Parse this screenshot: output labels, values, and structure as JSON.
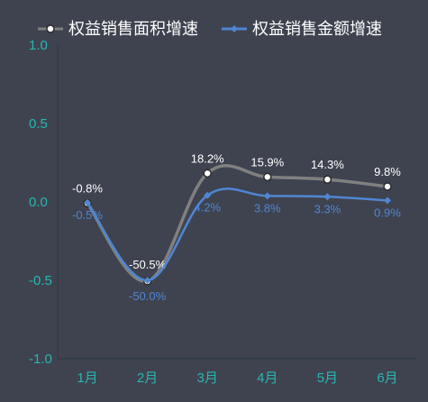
{
  "chart_data": {
    "type": "line",
    "categories": [
      "1月",
      "2月",
      "3月",
      "4月",
      "5月",
      "6月"
    ],
    "ylim": [
      -1.0,
      1.0
    ],
    "yticks": [
      "1.0",
      "0.5",
      "0.0",
      "-0.5",
      "-1.0"
    ],
    "legend_position": "top",
    "series": [
      {
        "name": "权益销售面积增速",
        "values": [
          -0.008,
          -0.505,
          0.182,
          0.159,
          0.143,
          0.098
        ],
        "labels": [
          "-0.8%",
          "-50.5%",
          "18.2%",
          "15.9%",
          "14.3%",
          "9.8%"
        ],
        "color": "#808080",
        "marker": "circle"
      },
      {
        "name": "权益销售金额增速",
        "values": [
          -0.005,
          -0.5,
          0.042,
          0.038,
          0.033,
          0.009
        ],
        "labels": [
          "-0.5%",
          "-50.0%",
          "4.2%",
          "3.8%",
          "3.3%",
          "0.9%"
        ],
        "color": "#4f86d2",
        "marker": "diamond"
      }
    ]
  }
}
